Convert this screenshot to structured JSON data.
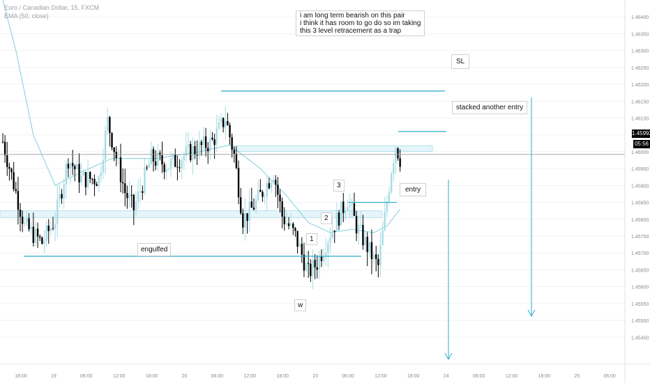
{
  "legend": {
    "symbol_line": "Euro / Canadian Dollar, 15, FXCM",
    "ema_line": "EMA (50, close)"
  },
  "annotations": {
    "thesis_lines": [
      "i am long term bearish on this pair",
      "i think it has room to go do so im taking",
      "this 3 level retracement as a trap"
    ],
    "sl": "SL",
    "stacked": "stacked another entry",
    "entry": "entry",
    "engulfed": "engulfed",
    "wave_w": "w",
    "wave_1": "1",
    "wave_2": "2",
    "wave_3": "3"
  },
  "price_tags": {
    "last_price": "1.45992",
    "countdown": "05:56"
  },
  "colors": {
    "up_candle": "#a6dce4",
    "down_candle": "#000000",
    "ema": "#7fcfdc",
    "level_line": "#29a9c8",
    "zone_fill": "#e5f5fa",
    "zone_border": "#b6e0ec",
    "grid": "#f2f2f2",
    "axis_text": "#8a8a8a"
  },
  "chart_data": {
    "type": "candlestick",
    "instrument": "EURCAD",
    "timeframe": "15",
    "ylim": [
      1.4537,
      1.4645
    ],
    "y_ticks": [
      1.4545,
      1.455,
      1.4555,
      1.456,
      1.4565,
      1.457,
      1.4575,
      1.458,
      1.4585,
      1.459,
      1.4595,
      1.46,
      1.4605,
      1.461,
      1.4615,
      1.462,
      1.4625,
      1.463,
      1.4635,
      1.464
    ],
    "x_tick_labels": [
      "18:00",
      "19",
      "06:00",
      "12:00",
      "18:00",
      "20",
      "06:00",
      "12:00",
      "18:00",
      "23",
      "06:00",
      "12:00",
      "18:00",
      "24",
      "06:00",
      "12:00",
      "18:00",
      "25",
      "06:00"
    ],
    "close_path": [
      {
        "bar": 0,
        "price": 1.4603
      },
      {
        "bar": 10,
        "price": 1.4578
      },
      {
        "bar": 18,
        "price": 1.4573
      },
      {
        "bar": 24,
        "price": 1.458
      },
      {
        "bar": 30,
        "price": 1.4598
      },
      {
        "bar": 36,
        "price": 1.4592
      },
      {
        "bar": 44,
        "price": 1.4592
      },
      {
        "bar": 48,
        "price": 1.4609
      },
      {
        "bar": 56,
        "price": 1.4588
      },
      {
        "bar": 60,
        "price": 1.4583
      },
      {
        "bar": 68,
        "price": 1.4598
      },
      {
        "bar": 76,
        "price": 1.4596
      },
      {
        "bar": 86,
        "price": 1.46
      },
      {
        "bar": 96,
        "price": 1.4603
      },
      {
        "bar": 102,
        "price": 1.461
      },
      {
        "bar": 106,
        "price": 1.4599
      },
      {
        "bar": 110,
        "price": 1.458
      },
      {
        "bar": 114,
        "price": 1.4583
      },
      {
        "bar": 118,
        "price": 1.4587
      },
      {
        "bar": 124,
        "price": 1.4594
      },
      {
        "bar": 128,
        "price": 1.4581
      },
      {
        "bar": 134,
        "price": 1.4575
      },
      {
        "bar": 140,
        "price": 1.4564
      },
      {
        "bar": 144,
        "price": 1.4567
      },
      {
        "bar": 150,
        "price": 1.4576
      },
      {
        "bar": 154,
        "price": 1.4581
      },
      {
        "bar": 158,
        "price": 1.4586
      },
      {
        "bar": 162,
        "price": 1.4578
      },
      {
        "bar": 166,
        "price": 1.4573
      },
      {
        "bar": 170,
        "price": 1.4568
      },
      {
        "bar": 172,
        "price": 1.4566
      },
      {
        "bar": 178,
        "price": 1.4595
      },
      {
        "bar": 180,
        "price": 1.4602
      },
      {
        "bar": 182,
        "price": 1.4598
      }
    ],
    "ema_50": [
      {
        "bar": 0,
        "price": 1.4645
      },
      {
        "bar": 6,
        "price": 1.463
      },
      {
        "bar": 14,
        "price": 1.4605
      },
      {
        "bar": 24,
        "price": 1.459
      },
      {
        "bar": 36,
        "price": 1.4594
      },
      {
        "bar": 50,
        "price": 1.4598
      },
      {
        "bar": 70,
        "price": 1.4598
      },
      {
        "bar": 90,
        "price": 1.46
      },
      {
        "bar": 104,
        "price": 1.4602
      },
      {
        "bar": 118,
        "price": 1.4595
      },
      {
        "bar": 130,
        "price": 1.4587
      },
      {
        "bar": 140,
        "price": 1.4579
      },
      {
        "bar": 150,
        "price": 1.4576
      },
      {
        "bar": 160,
        "price": 1.4577
      },
      {
        "bar": 170,
        "price": 1.4576
      },
      {
        "bar": 176,
        "price": 1.4578
      },
      {
        "bar": 182,
        "price": 1.4583
      }
    ],
    "levels": [
      {
        "name": "SL",
        "price": 1.4618
      },
      {
        "name": "stacked-entry",
        "price": 1.4606
      },
      {
        "name": "entry",
        "price": 1.4585
      },
      {
        "name": "engulfed",
        "price": 1.4569
      },
      {
        "name": "last-price",
        "price": 1.45992
      }
    ],
    "zones": [
      {
        "top": 1.46018,
        "bottom": 1.46001
      },
      {
        "top": 1.45825,
        "bottom": 1.45805
      }
    ],
    "grid": false
  }
}
